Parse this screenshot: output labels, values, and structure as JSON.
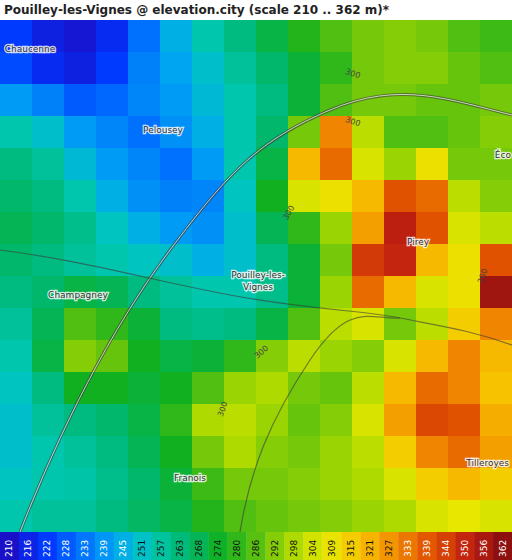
{
  "chart_data": {
    "type": "heatmap",
    "title": "Pouilley-les-Vignes @ elevation.city (scale 210 .. 362 m)*",
    "places": [
      "Chaucenne",
      "Pelousey",
      "Pouilley-les-",
      "Vignes",
      "Champagney",
      "Pirey",
      "Éco",
      "Franois",
      "Tilleroyes"
    ],
    "contour_labels": [
      "300",
      "300",
      "300",
      "300",
      "300",
      "300"
    ],
    "elevation": [
      [
        222,
        215,
        212,
        218,
        232,
        245,
        255,
        262,
        270,
        278,
        285,
        290,
        292,
        290,
        285,
        282
      ],
      [
        225,
        218,
        215,
        222,
        235,
        242,
        250,
        258,
        265,
        272,
        280,
        290,
        292,
        292,
        288,
        285
      ],
      [
        240,
        235,
        228,
        230,
        236,
        240,
        248,
        255,
        262,
        272,
        285,
        290,
        290,
        288,
        288,
        290
      ],
      [
        255,
        250,
        240,
        236,
        232,
        238,
        245,
        255,
        265,
        290,
        330,
        300,
        285,
        285,
        288,
        292
      ],
      [
        262,
        258,
        248,
        240,
        236,
        232,
        240,
        255,
        270,
        320,
        335,
        305,
        295,
        310,
        290,
        290
      ],
      [
        265,
        262,
        255,
        245,
        238,
        235,
        236,
        252,
        275,
        305,
        310,
        320,
        340,
        335,
        300,
        292
      ],
      [
        268,
        265,
        260,
        252,
        245,
        240,
        238,
        250,
        268,
        280,
        295,
        325,
        352,
        340,
        305,
        300
      ],
      [
        265,
        262,
        258,
        255,
        252,
        250,
        245,
        250,
        262,
        272,
        290,
        345,
        350,
        320,
        310,
        340
      ],
      [
        262,
        265,
        270,
        268,
        262,
        258,
        255,
        255,
        260,
        272,
        295,
        335,
        320,
        305,
        310,
        358
      ],
      [
        258,
        268,
        285,
        280,
        272,
        262,
        260,
        262,
        270,
        285,
        300,
        305,
        290,
        300,
        315,
        330
      ],
      [
        255,
        270,
        292,
        288,
        275,
        270,
        272,
        280,
        292,
        300,
        295,
        292,
        305,
        320,
        330,
        320
      ],
      [
        252,
        262,
        275,
        275,
        272,
        275,
        285,
        295,
        298,
        290,
        288,
        300,
        320,
        335,
        330,
        318
      ],
      [
        250,
        258,
        262,
        265,
        270,
        280,
        298,
        300,
        295,
        288,
        292,
        305,
        325,
        342,
        340,
        322
      ],
      [
        250,
        255,
        258,
        262,
        268,
        275,
        290,
        298,
        292,
        290,
        295,
        300,
        315,
        330,
        335,
        325
      ],
      [
        252,
        255,
        256,
        260,
        265,
        272,
        282,
        290,
        290,
        292,
        295,
        298,
        305,
        315,
        320,
        315
      ],
      [
        255,
        258,
        258,
        262,
        266,
        270,
        278,
        285,
        288,
        290,
        292,
        295,
        298,
        305,
        308,
        305
      ]
    ],
    "colorbar": {
      "range": [
        210,
        362
      ],
      "ticks": [
        210,
        216,
        222,
        228,
        233,
        239,
        245,
        251,
        257,
        263,
        268,
        274,
        280,
        286,
        292,
        298,
        304,
        309,
        315,
        321,
        327,
        333,
        339,
        344,
        350,
        356,
        362
      ]
    }
  }
}
